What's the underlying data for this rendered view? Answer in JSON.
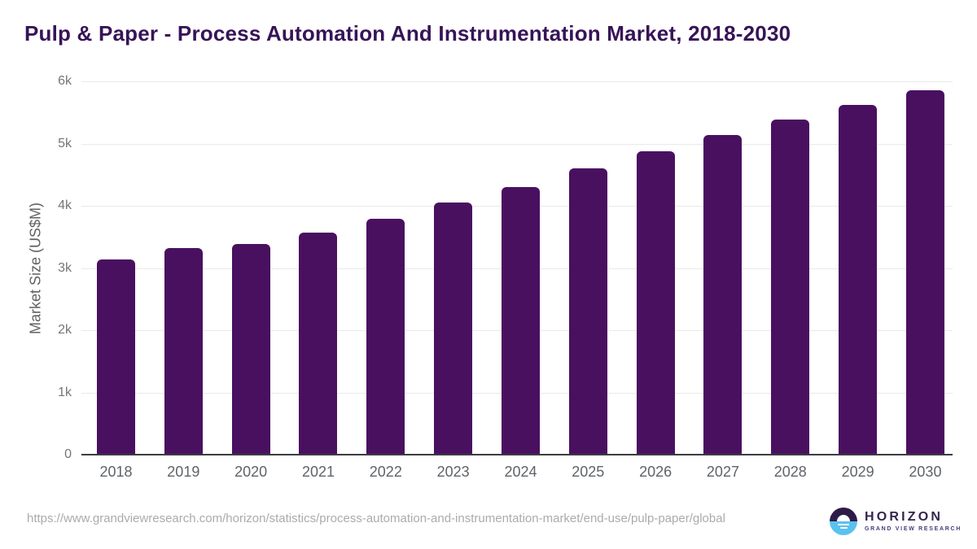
{
  "title": "Pulp & Paper - Process Automation And Instrumentation Market, 2018-2030",
  "chart_data": {
    "type": "bar",
    "title": "Pulp & Paper - Process Automation And Instrumentation Market, 2018-2030",
    "categories": [
      "2018",
      "2019",
      "2020",
      "2021",
      "2022",
      "2023",
      "2024",
      "2025",
      "2026",
      "2027",
      "2028",
      "2029",
      "2030"
    ],
    "values": [
      3140,
      3320,
      3390,
      3570,
      3790,
      4050,
      4300,
      4600,
      4880,
      5140,
      5390,
      5620,
      5860
    ],
    "xlabel": "",
    "ylabel": "Market Size (US$M)",
    "ylim": [
      0,
      6000
    ],
    "yticks": {
      "values": [
        0,
        1000,
        2000,
        3000,
        4000,
        5000,
        6000
      ],
      "labels": [
        "0",
        "1k",
        "2k",
        "3k",
        "4k",
        "5k",
        "6k"
      ]
    },
    "grid": true,
    "legend": "none",
    "bar_color": "#4a1060"
  },
  "colors": {
    "title": "#371457",
    "bar": "#4a1060",
    "gridline": "#e9e9e9",
    "axis_line": "#3c3c42",
    "tick_label": "#757575",
    "x_label": "#5f6368",
    "url_text": "#ababab",
    "logo_navy": "#33254e",
    "logo_purple": "#4b3a78",
    "logo_blue": "#5ac2ef"
  },
  "footer": {
    "source_url": "https://www.grandviewresearch.com/horizon/statistics/process-automation-and-instrumentation-market/end-use/pulp-paper/global",
    "logo": {
      "name": "HORIZON",
      "tagline": "GRAND VIEW RESEARCH",
      "icon": "horizon-sunrise-icon"
    }
  }
}
